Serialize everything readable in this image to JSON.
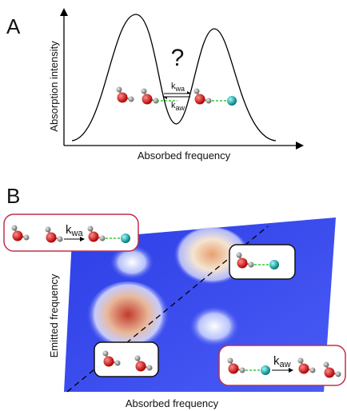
{
  "panel_a": {
    "label": "A",
    "question": "?",
    "y_axis_label": "Absorption intensity",
    "x_axis_label": "Absorbed frequency",
    "rate_forward": {
      "symbol": "k",
      "subscript": "wa"
    },
    "rate_backward": {
      "symbol": "k",
      "subscript": "aw"
    }
  },
  "panel_b": {
    "label": "B",
    "y_axis_label": "Emitted frequency",
    "x_axis_label": "Absorbed frequency",
    "rate_top": {
      "symbol": "k",
      "subscript": "wa"
    },
    "rate_bottom": {
      "symbol": "k",
      "subscript": "aw"
    }
  }
}
